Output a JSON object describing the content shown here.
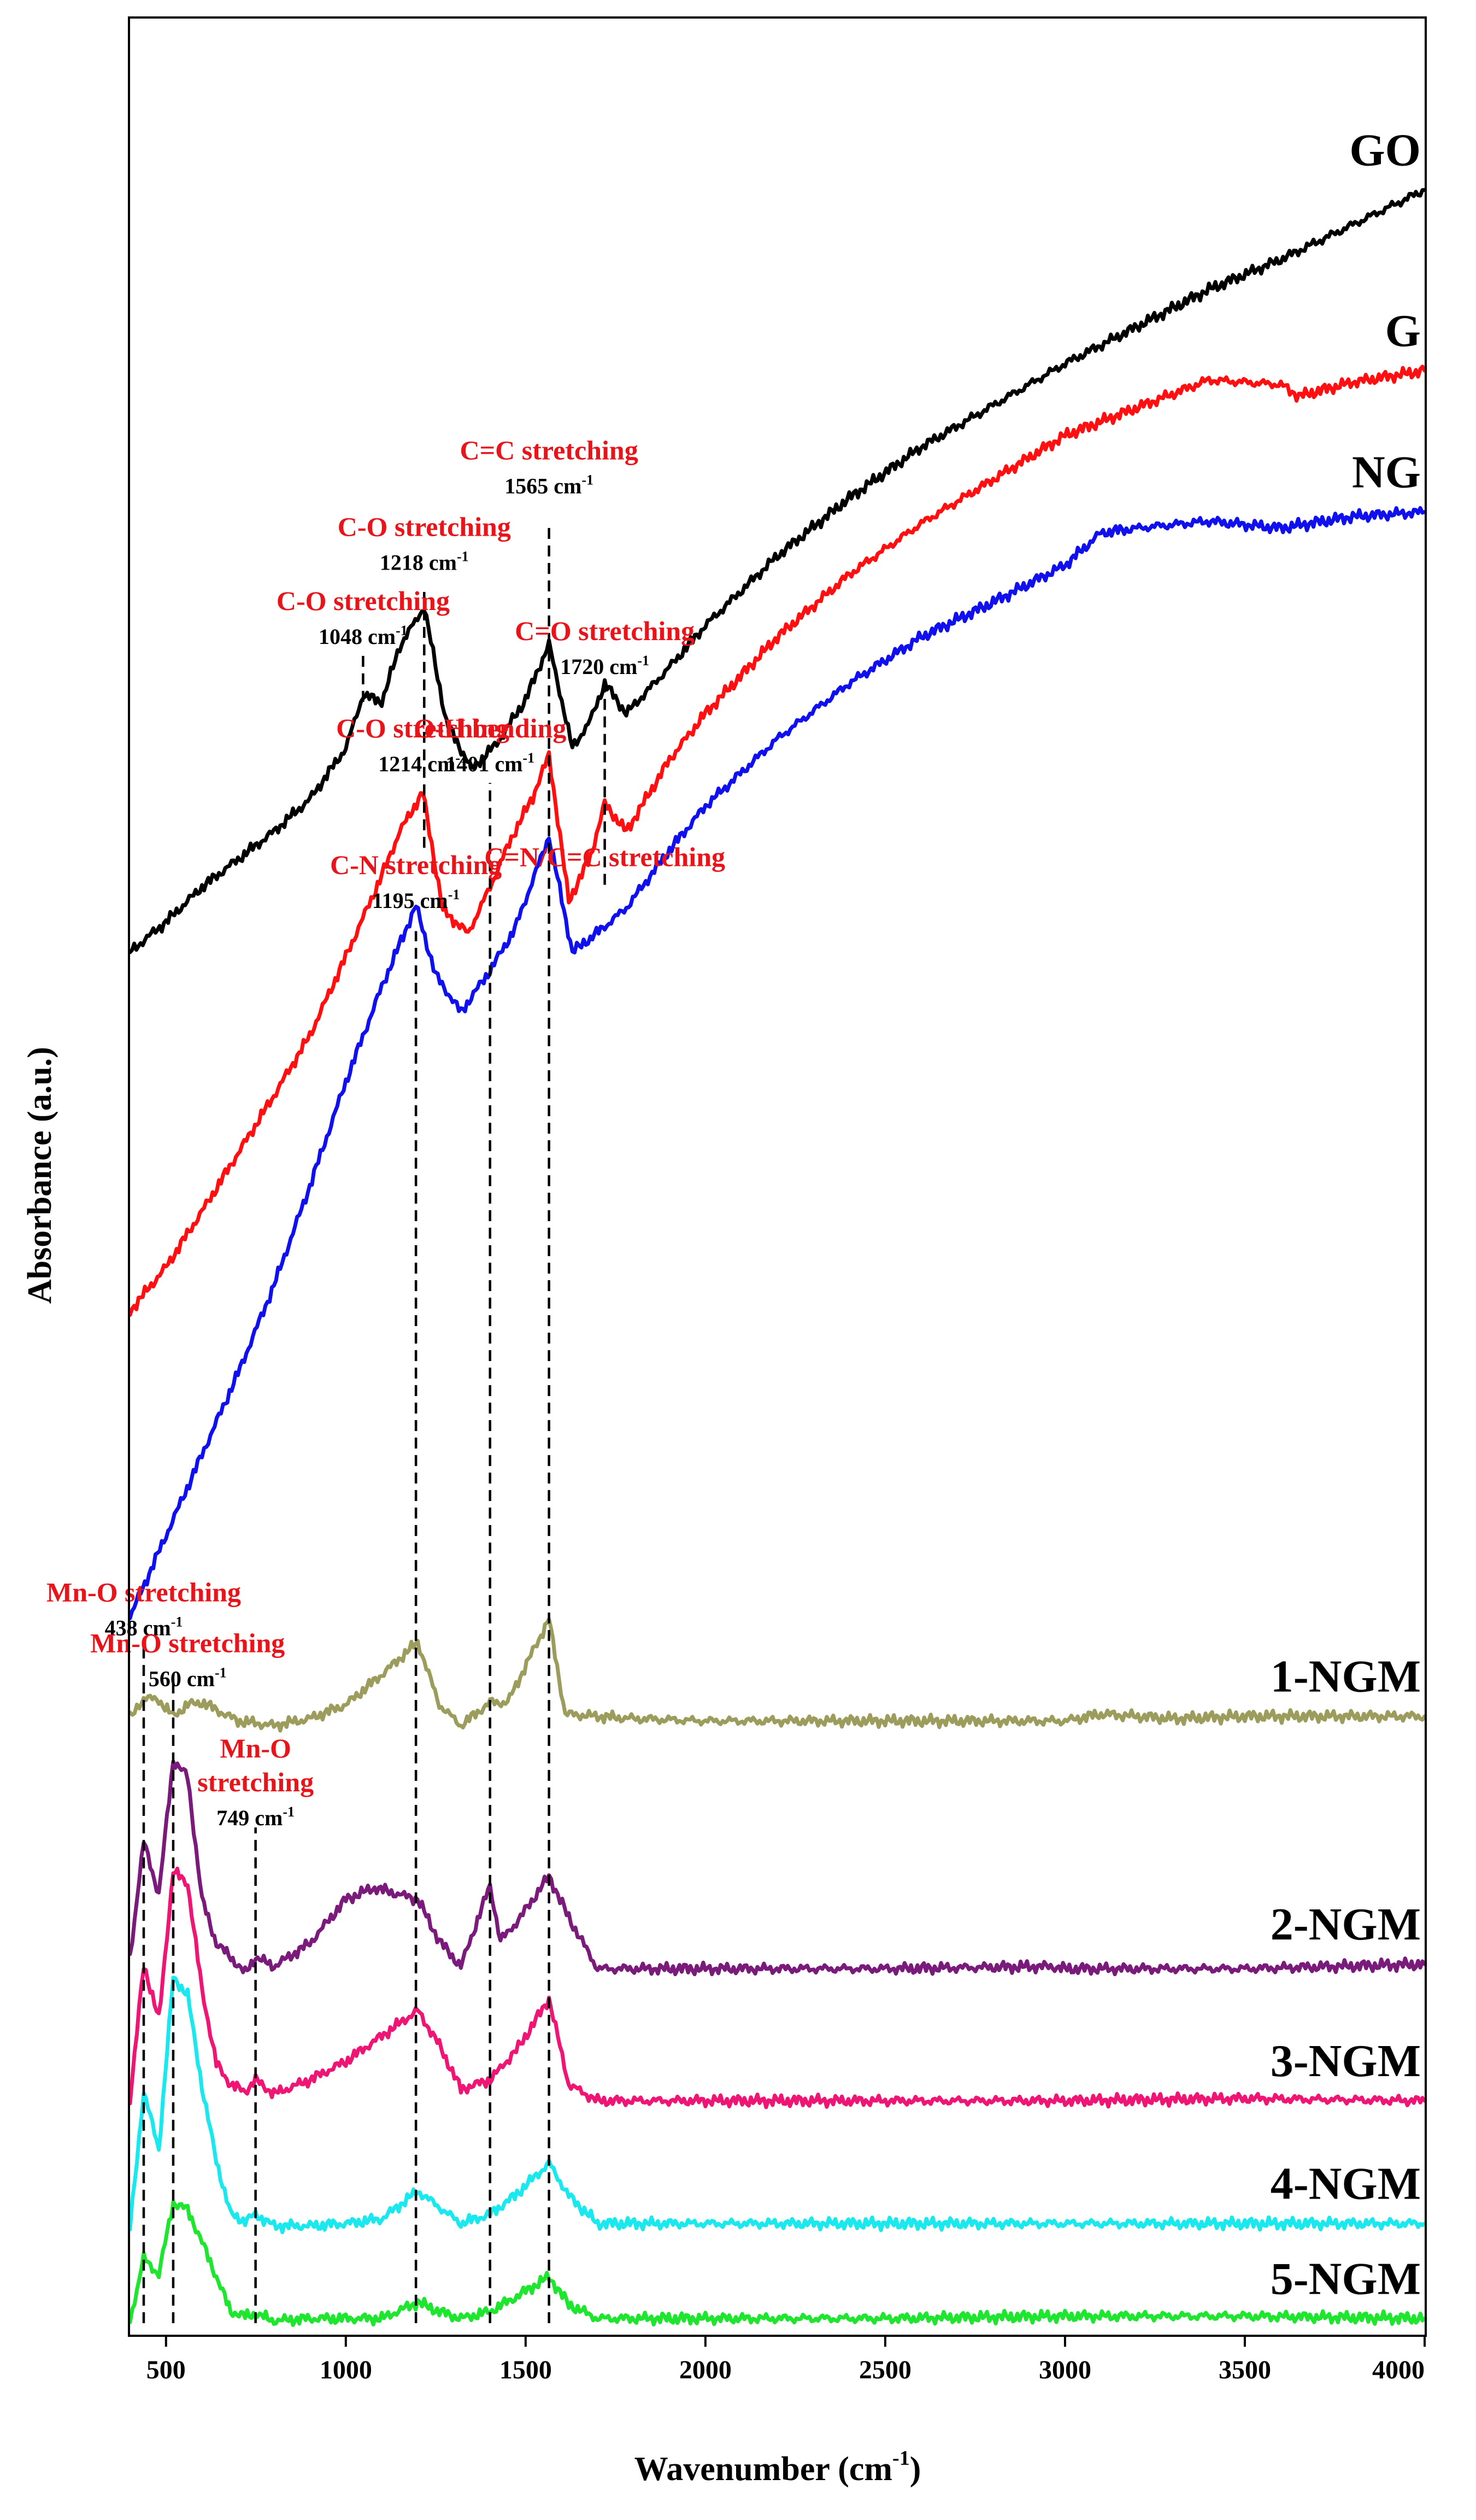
{
  "chart_data": {
    "type": "line",
    "title": "",
    "xlabel": "Wavenumber (cm-1)",
    "xlabel_parts": {
      "main": "Wavenumber (cm",
      "sup": "-1",
      "close": ")"
    },
    "ylabel": "Absorbance (a.u.)",
    "xlim": [
      400,
      4000
    ],
    "ylim": [
      0,
      100
    ],
    "xticks": [
      500,
      1000,
      1500,
      2000,
      2500,
      3000,
      3500,
      4000
    ],
    "xtick_labels": [
      "500",
      "1000",
      "1500",
      "2000",
      "2500",
      "3000",
      "3500",
      "4000"
    ],
    "yticks_shown": false,
    "grid": false,
    "legend": "labels at right end of each curve",
    "series": [
      {
        "name": "GO",
        "color": "#000000",
        "x": [
          400,
          500,
          600,
          700,
          800,
          900,
          1000,
          1048,
          1100,
          1150,
          1218,
          1280,
          1350,
          1420,
          1500,
          1565,
          1630,
          1680,
          1720,
          1780,
          1900,
          2000,
          2200,
          2400,
          2600,
          2800,
          3000,
          3200,
          3400,
          3600,
          3800,
          4000
        ],
        "y": [
          59.7,
          61.0,
          62.5,
          63.7,
          64.9,
          66.3,
          68.5,
          70.8,
          70.5,
          72.9,
          74.6,
          69.6,
          67.6,
          68.7,
          70.6,
          73.0,
          68.5,
          69.7,
          71.3,
          70.0,
          72.0,
          73.8,
          76.8,
          79.3,
          81.5,
          83.3,
          85.1,
          86.7,
          88.3,
          89.6,
          91.1,
          92.6
        ]
      },
      {
        "name": "G",
        "color": "#ff0f0f",
        "x": [
          400,
          500,
          600,
          700,
          800,
          900,
          1000,
          1100,
          1150,
          1214,
          1270,
          1340,
          1401,
          1460,
          1520,
          1565,
          1620,
          1680,
          1720,
          1780,
          1900,
          2000,
          2200,
          2400,
          2600,
          2800,
          3000,
          3200,
          3400,
          3600,
          3650,
          3800,
          4000
        ],
        "y": [
          44.2,
          46.1,
          48.5,
          51.0,
          53.5,
          56.1,
          59.5,
          63.0,
          64.9,
          66.6,
          61.5,
          60.5,
          62.5,
          64.6,
          66.4,
          68.2,
          61.9,
          63.8,
          66.1,
          64.9,
          68.0,
          70.0,
          73.3,
          76.0,
          78.2,
          80.1,
          82.0,
          83.2,
          84.4,
          84.2,
          83.7,
          84.3,
          84.8
        ]
      },
      {
        "name": "NG",
        "color": "#1010ee",
        "x": [
          400,
          500,
          600,
          700,
          800,
          900,
          1000,
          1100,
          1195,
          1250,
          1320,
          1401,
          1470,
          1565,
          1630,
          1680,
          1720,
          1780,
          1900,
          2000,
          2200,
          2400,
          2600,
          2800,
          3000,
          3100,
          3200,
          3400,
          3600,
          3800,
          4000
        ],
        "y": [
          31.0,
          34.5,
          38.0,
          41.5,
          45.3,
          49.6,
          54.1,
          58.2,
          61.7,
          58.7,
          57.1,
          58.9,
          60.7,
          64.7,
          59.7,
          60.3,
          60.8,
          61.6,
          64.1,
          66.0,
          68.9,
          71.3,
          73.3,
          74.8,
          76.4,
          77.8,
          78.0,
          78.3,
          78.0,
          78.5,
          78.7
        ]
      },
      {
        "name": "1-NGM",
        "color": "#9c9c5c",
        "x": [
          400,
          438,
          480,
          520,
          560,
          600,
          700,
          800,
          900,
          1000,
          1100,
          1200,
          1260,
          1320,
          1401,
          1450,
          1520,
          1565,
          1610,
          1700,
          1800,
          2000,
          2500,
          3000,
          3100,
          3300,
          3500,
          4000
        ],
        "y": [
          26.6,
          27.5,
          27.4,
          26.7,
          27.2,
          27.3,
          26.5,
          26.3,
          26.6,
          27.2,
          28.5,
          29.9,
          27.2,
          26.3,
          27.3,
          27.3,
          29.5,
          30.9,
          26.8,
          26.7,
          26.6,
          26.5,
          26.5,
          26.5,
          26.8,
          26.6,
          26.7,
          26.7
        ]
      },
      {
        "name": "2-NGM",
        "color": "#7a1a7a",
        "x": [
          400,
          438,
          480,
          520,
          560,
          600,
          640,
          680,
          720,
          749,
          800,
          900,
          1000,
          1080,
          1150,
          1200,
          1260,
          1320,
          1401,
          1430,
          1480,
          1565,
          1620,
          1700,
          2000,
          2500,
          2960,
          3000,
          3500,
          4000
        ],
        "y": [
          16.3,
          21.3,
          19.0,
          24.8,
          24.1,
          18.8,
          16.9,
          16.3,
          15.6,
          16.3,
          15.9,
          16.9,
          18.8,
          19.3,
          19.0,
          18.8,
          17.0,
          15.9,
          19.4,
          17.0,
          17.9,
          19.8,
          18.0,
          15.8,
          15.8,
          15.8,
          15.9,
          15.8,
          15.8,
          16.0
        ]
      },
      {
        "name": "3-NGM",
        "color": "#ef1574",
        "x": [
          400,
          438,
          480,
          520,
          560,
          600,
          640,
          680,
          720,
          749,
          800,
          900,
          1000,
          1100,
          1200,
          1260,
          1320,
          1401,
          1430,
          1480,
          1565,
          1620,
          1700,
          2000,
          2500,
          3000,
          3500,
          4000
        ],
        "y": [
          10.1,
          16.0,
          13.6,
          20.0,
          19.5,
          14.9,
          11.7,
          10.8,
          10.5,
          11.0,
          10.4,
          11.0,
          11.8,
          12.9,
          14.0,
          12.5,
          10.6,
          11.0,
          11.5,
          12.4,
          14.5,
          10.8,
          10.1,
          10.1,
          10.1,
          10.1,
          10.2,
          10.1
        ]
      },
      {
        "name": "4-NGM",
        "color": "#19e8ee",
        "x": [
          400,
          438,
          480,
          520,
          560,
          600,
          640,
          680,
          720,
          749,
          800,
          900,
          1000,
          1100,
          1200,
          1260,
          1320,
          1401,
          1470,
          1565,
          1620,
          1700,
          2000,
          2500,
          3000,
          3500,
          4000
        ],
        "y": [
          4.6,
          10.5,
          8.0,
          15.4,
          14.7,
          10.7,
          7.5,
          5.2,
          4.9,
          5.2,
          4.7,
          4.7,
          4.8,
          5.0,
          6.2,
          5.5,
          4.8,
          5.2,
          6.0,
          7.4,
          6.0,
          4.8,
          4.8,
          4.8,
          4.8,
          4.8,
          4.8
        ]
      },
      {
        "name": "5-NGM",
        "color": "#1ee52d",
        "x": [
          400,
          438,
          480,
          520,
          560,
          600,
          640,
          680,
          720,
          749,
          800,
          900,
          1000,
          1100,
          1200,
          1260,
          1320,
          1401,
          1470,
          1565,
          1620,
          1700,
          2000,
          2500,
          3000,
          3500,
          4000
        ],
        "y": [
          0.6,
          3.3,
          2.6,
          5.7,
          5.4,
          4.0,
          2.5,
          1.0,
          0.8,
          0.9,
          0.6,
          0.7,
          0.7,
          0.7,
          1.4,
          1.0,
          0.7,
          1.0,
          1.6,
          2.5,
          1.3,
          0.7,
          0.7,
          0.7,
          0.8,
          0.8,
          0.7
        ]
      }
    ],
    "guide_lines": [
      {
        "x": 1048,
        "y_from": 70.5,
        "y_to": 72.6
      },
      {
        "x": 1218,
        "y_from": 64.2,
        "y_to": 75.3
      },
      {
        "x": 1565,
        "y_from": 0.5,
        "y_to": 78.2
      },
      {
        "x": 1720,
        "y_from": 62.6,
        "y_to": 71.1
      },
      {
        "x": 1401,
        "y_from": 0.5,
        "y_to": 67.0
      },
      {
        "x": 1195,
        "y_from": 0.5,
        "y_to": 60.6
      },
      {
        "x": 520,
        "y_from": 0.5,
        "y_to": 28.5
      },
      {
        "x": 438,
        "y_from": 0.5,
        "y_to": 29.8
      },
      {
        "x": 749,
        "y_from": 0.5,
        "y_to": 21.9
      }
    ],
    "annotations": [
      {
        "title": "C=C stretching",
        "value": "1565 cm",
        "sup": "-1",
        "x": 1565,
        "y": 79.5
      },
      {
        "title": "C-O stretching",
        "value": "1218 cm",
        "sup": "-1",
        "x": 1218,
        "y": 76.2
      },
      {
        "title": "C-O stretching",
        "value": "1048 cm",
        "sup": "-1",
        "x": 1048,
        "y": 73.0
      },
      {
        "title": "C=O stretching",
        "value": "1720 cm",
        "sup": "-1",
        "x": 1720,
        "y": 71.7
      },
      {
        "title": "C-O stretching",
        "value": "1214 cm",
        "sup": "-1",
        "x": 1214,
        "y": 67.5
      },
      {
        "title": "O-H bending",
        "value": "1401 cm",
        "sup": "-1",
        "x": 1401,
        "y": 67.5
      },
      {
        "title": "C=N/C=C stretching",
        "value": "",
        "sup": "",
        "x": 1720,
        "y": 63.4
      },
      {
        "title": "C-N stretching",
        "value": "1195 cm",
        "sup": "-1",
        "x": 1195,
        "y": 61.6
      },
      {
        "title": "Mn-O stretching",
        "value": "438 cm",
        "sup": "-1",
        "x": 438,
        "y": 30.2
      },
      {
        "title": "Mn-O stretching",
        "value": "560 cm",
        "sup": "-1",
        "x": 560,
        "y": 28.0
      },
      {
        "title": "Mn-O",
        "title2": "stretching",
        "value": "749 cm",
        "sup": "-1",
        "x": 749,
        "y": 22.0
      }
    ]
  }
}
